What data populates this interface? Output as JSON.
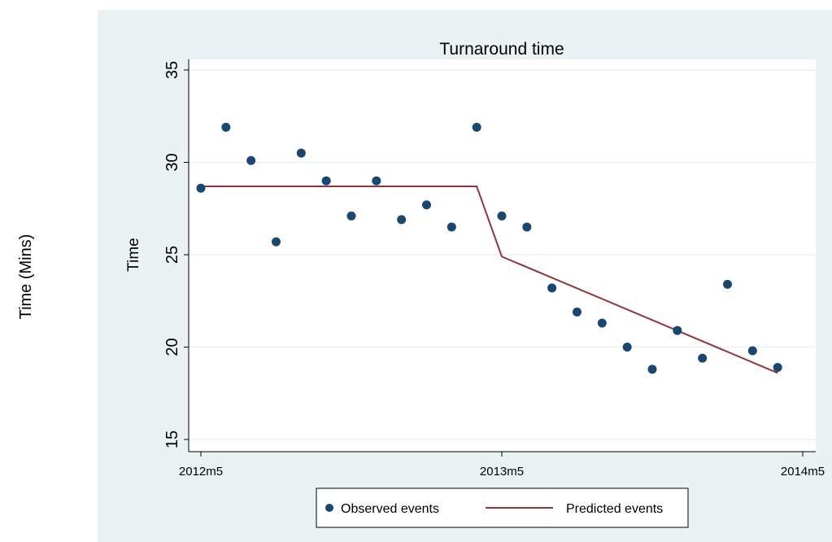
{
  "outer_ylabel": "Time (Mins)",
  "colors": {
    "panel_bg": "#eaf2f3",
    "plot_bg": "#ffffff",
    "observed": "#1a476f",
    "predicted": "#90353b",
    "grid": "#eaf2f3"
  },
  "chart_data": {
    "type": "scatter",
    "title": "Turnaround time",
    "xlabel": "",
    "ylabel": "Time",
    "ylim": [
      15,
      35
    ],
    "yticks": [
      "15",
      "20",
      "25",
      "30",
      "35"
    ],
    "xlim": [
      "2012m5",
      "2014m5"
    ],
    "xticks": [
      "2012m5",
      "2013m5",
      "2014m5"
    ],
    "grid": true,
    "legend_position": "bottom",
    "series": [
      {
        "name": "Observed events",
        "kind": "scatter",
        "x": [
          "2012m5",
          "2012m6",
          "2012m7",
          "2012m8",
          "2012m9",
          "2012m10",
          "2012m11",
          "2012m12",
          "2013m1",
          "2013m2",
          "2013m3",
          "2013m4",
          "2013m5",
          "2013m6",
          "2013m7",
          "2013m8",
          "2013m9",
          "2013m10",
          "2013m11",
          "2013m12",
          "2014m1",
          "2014m2",
          "2014m3",
          "2014m4"
        ],
        "values": [
          28.6,
          31.9,
          30.1,
          25.7,
          30.5,
          29.0,
          27.1,
          29.0,
          26.9,
          27.7,
          26.5,
          31.9,
          27.1,
          26.5,
          23.2,
          21.9,
          21.3,
          20.0,
          18.8,
          20.9,
          19.4,
          23.4,
          19.8,
          18.9
        ]
      },
      {
        "name": "Predicted events",
        "kind": "line",
        "x": [
          "2012m5",
          "2013m4",
          "2013m5",
          "2014m4"
        ],
        "values": [
          28.7,
          28.7,
          24.9,
          18.6
        ]
      }
    ]
  }
}
